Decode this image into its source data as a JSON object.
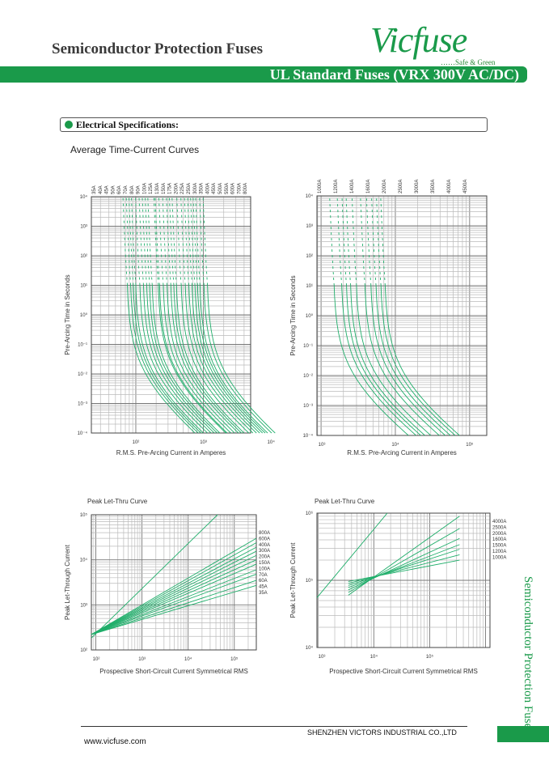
{
  "header": {
    "title": "Semiconductor Protection Fuses",
    "logo": "Vicfuse",
    "tagline": "……Safe & Green",
    "banner": "UL Standard Fuses (VRX 300V AC/DC)"
  },
  "section": {
    "title": "Electrical Specifications:",
    "subtitle": "Average Time-Current Curves"
  },
  "side_text": "Semiconductor Protection Fuses",
  "footer": {
    "company": "SHENZHEN VICTORS INDUSTRIAL CO.,LTD",
    "url": "www.vicfuse.com"
  },
  "colors": {
    "brand": "#1a9a4a",
    "curve": "#1fae6a",
    "grid": "#9a9a9a"
  },
  "chart_data": [
    {
      "type": "line",
      "title": "",
      "xlabel": "R.M.S. Pre-Arcing Current in Amperes",
      "ylabel": "Pre-Arcing Time in Seconds",
      "xscale": "log",
      "yscale": "log",
      "xlim": [
        22,
        5000
      ],
      "ylim": [
        0.0001,
        10000
      ],
      "xticks": [
        {
          "v": 100,
          "label": "10²"
        },
        {
          "v": 1000,
          "label": "10³"
        },
        {
          "v": 10000,
          "label": "10⁴"
        }
      ],
      "yticks": [
        {
          "v": 10000,
          "label": "10⁴"
        },
        {
          "v": 1000,
          "label": "10³"
        },
        {
          "v": 100,
          "label": "10²"
        },
        {
          "v": 10,
          "label": "10¹"
        },
        {
          "v": 1,
          "label": "10⁰"
        },
        {
          "v": 0.1,
          "label": "10⁻¹"
        },
        {
          "v": 0.01,
          "label": "10⁻²"
        },
        {
          "v": 0.001,
          "label": "10⁻³"
        },
        {
          "v": 0.0001,
          "label": "10⁻⁴"
        }
      ],
      "series_labels": [
        "35A",
        "40A",
        "45A",
        "50A",
        "60A",
        "70A",
        "80A",
        "90A",
        "100A",
        "125A",
        "130A",
        "150A",
        "175A",
        "200A",
        "225A",
        "250A",
        "300A",
        "350A",
        "400A",
        "450A",
        "500A",
        "550A",
        "600A",
        "700A",
        "800A"
      ],
      "current_at_10s": [
        75,
        84,
        92,
        100,
        115,
        130,
        145,
        160,
        175,
        215,
        225,
        255,
        290,
        330,
        365,
        400,
        470,
        540,
        610,
        680,
        750,
        820,
        890,
        1020,
        1150
      ]
    },
    {
      "type": "line",
      "title": "",
      "xlabel": "R.M.S. Pre-Arcing Current in Amperes",
      "ylabel": "Pre-Arcing Time in Seconds",
      "xscale": "log",
      "yscale": "log",
      "xlim": [
        880,
        170000
      ],
      "ylim": [
        0.0001,
        10000
      ],
      "xticks": [
        {
          "v": 1000,
          "label": "10³"
        },
        {
          "v": 10000,
          "label": "10⁴"
        },
        {
          "v": 100000,
          "label": "10⁵"
        }
      ],
      "yticks": [
        {
          "v": 10000,
          "label": "10⁴"
        },
        {
          "v": 1000,
          "label": "10³"
        },
        {
          "v": 100,
          "label": "10²"
        },
        {
          "v": 10,
          "label": "10¹"
        },
        {
          "v": 1,
          "label": "10⁰"
        },
        {
          "v": 0.1,
          "label": "10⁻¹"
        },
        {
          "v": 0.01,
          "label": "10⁻²"
        },
        {
          "v": 0.001,
          "label": "10⁻³"
        },
        {
          "v": 0.0001,
          "label": "10⁻⁴"
        }
      ],
      "series_labels": [
        "1000A",
        "1200A",
        "1400A",
        "1600A",
        "2000A",
        "2500A",
        "3000A",
        "3500A",
        "4000A",
        "4500A"
      ],
      "current_at_10s": [
        1500,
        1900,
        2200,
        2500,
        3000,
        3900,
        4700,
        5500,
        6400,
        7300
      ]
    },
    {
      "type": "line",
      "title": "Peak Let-Thru Curve",
      "xlabel": "Prospective Short-Circuit Current Symmetrical RMS",
      "ylabel": "Peak Let-Through Current",
      "xscale": "log",
      "yscale": "log",
      "xlim": [
        80,
        300000
      ],
      "ylim": [
        100,
        100000
      ],
      "xticks": [
        {
          "v": 100,
          "label": "10²"
        },
        {
          "v": 1000,
          "label": "10³"
        },
        {
          "v": 10000,
          "label": "10⁴"
        },
        {
          "v": 100000,
          "label": "10⁵"
        }
      ],
      "yticks": [
        {
          "v": 100000,
          "label": "10⁵"
        },
        {
          "v": 10000,
          "label": "10⁴"
        },
        {
          "v": 1000,
          "label": "10³"
        },
        {
          "v": 100,
          "label": "10²"
        }
      ],
      "origin": [
        80,
        220
      ],
      "series_labels": [
        "800A",
        "600A",
        "400A",
        "300A",
        "200A",
        "150A",
        "100A",
        "70A",
        "60A",
        "45A",
        "35A"
      ],
      "peak_at_200kA": [
        30000,
        24000,
        19000,
        15500,
        12500,
        10000,
        8000,
        6000,
        4800,
        3500,
        2700
      ]
    },
    {
      "type": "line",
      "title": "Peak Let-Thru Curve",
      "xlabel": "Prospective Short-Circuit Current Symmetrical RMS",
      "ylabel": "Peak Let-Through Current",
      "xscale": "log",
      "yscale": "log",
      "xlim": [
        960,
        1200000
      ],
      "ylim": [
        10000,
        1000000
      ],
      "xticks": [
        {
          "v": 1000,
          "label": "10³"
        },
        {
          "v": 10000,
          "label": "10⁴"
        },
        {
          "v": 100000,
          "label": "10⁵"
        }
      ],
      "yticks": [
        {
          "v": 1000000,
          "label": "10⁶"
        },
        {
          "v": 100000,
          "label": "10⁵"
        },
        {
          "v": 10000,
          "label": "10⁴"
        }
      ],
      "origin": [
        3500,
        60000
      ],
      "series_labels": [
        "4000A",
        "2500A",
        "2000A",
        "1600A",
        "1500A",
        "1200A",
        "1000A"
      ],
      "peak_at_200kA": [
        900000,
        590000,
        420000,
        340000,
        290000,
        240000,
        200000
      ]
    }
  ]
}
